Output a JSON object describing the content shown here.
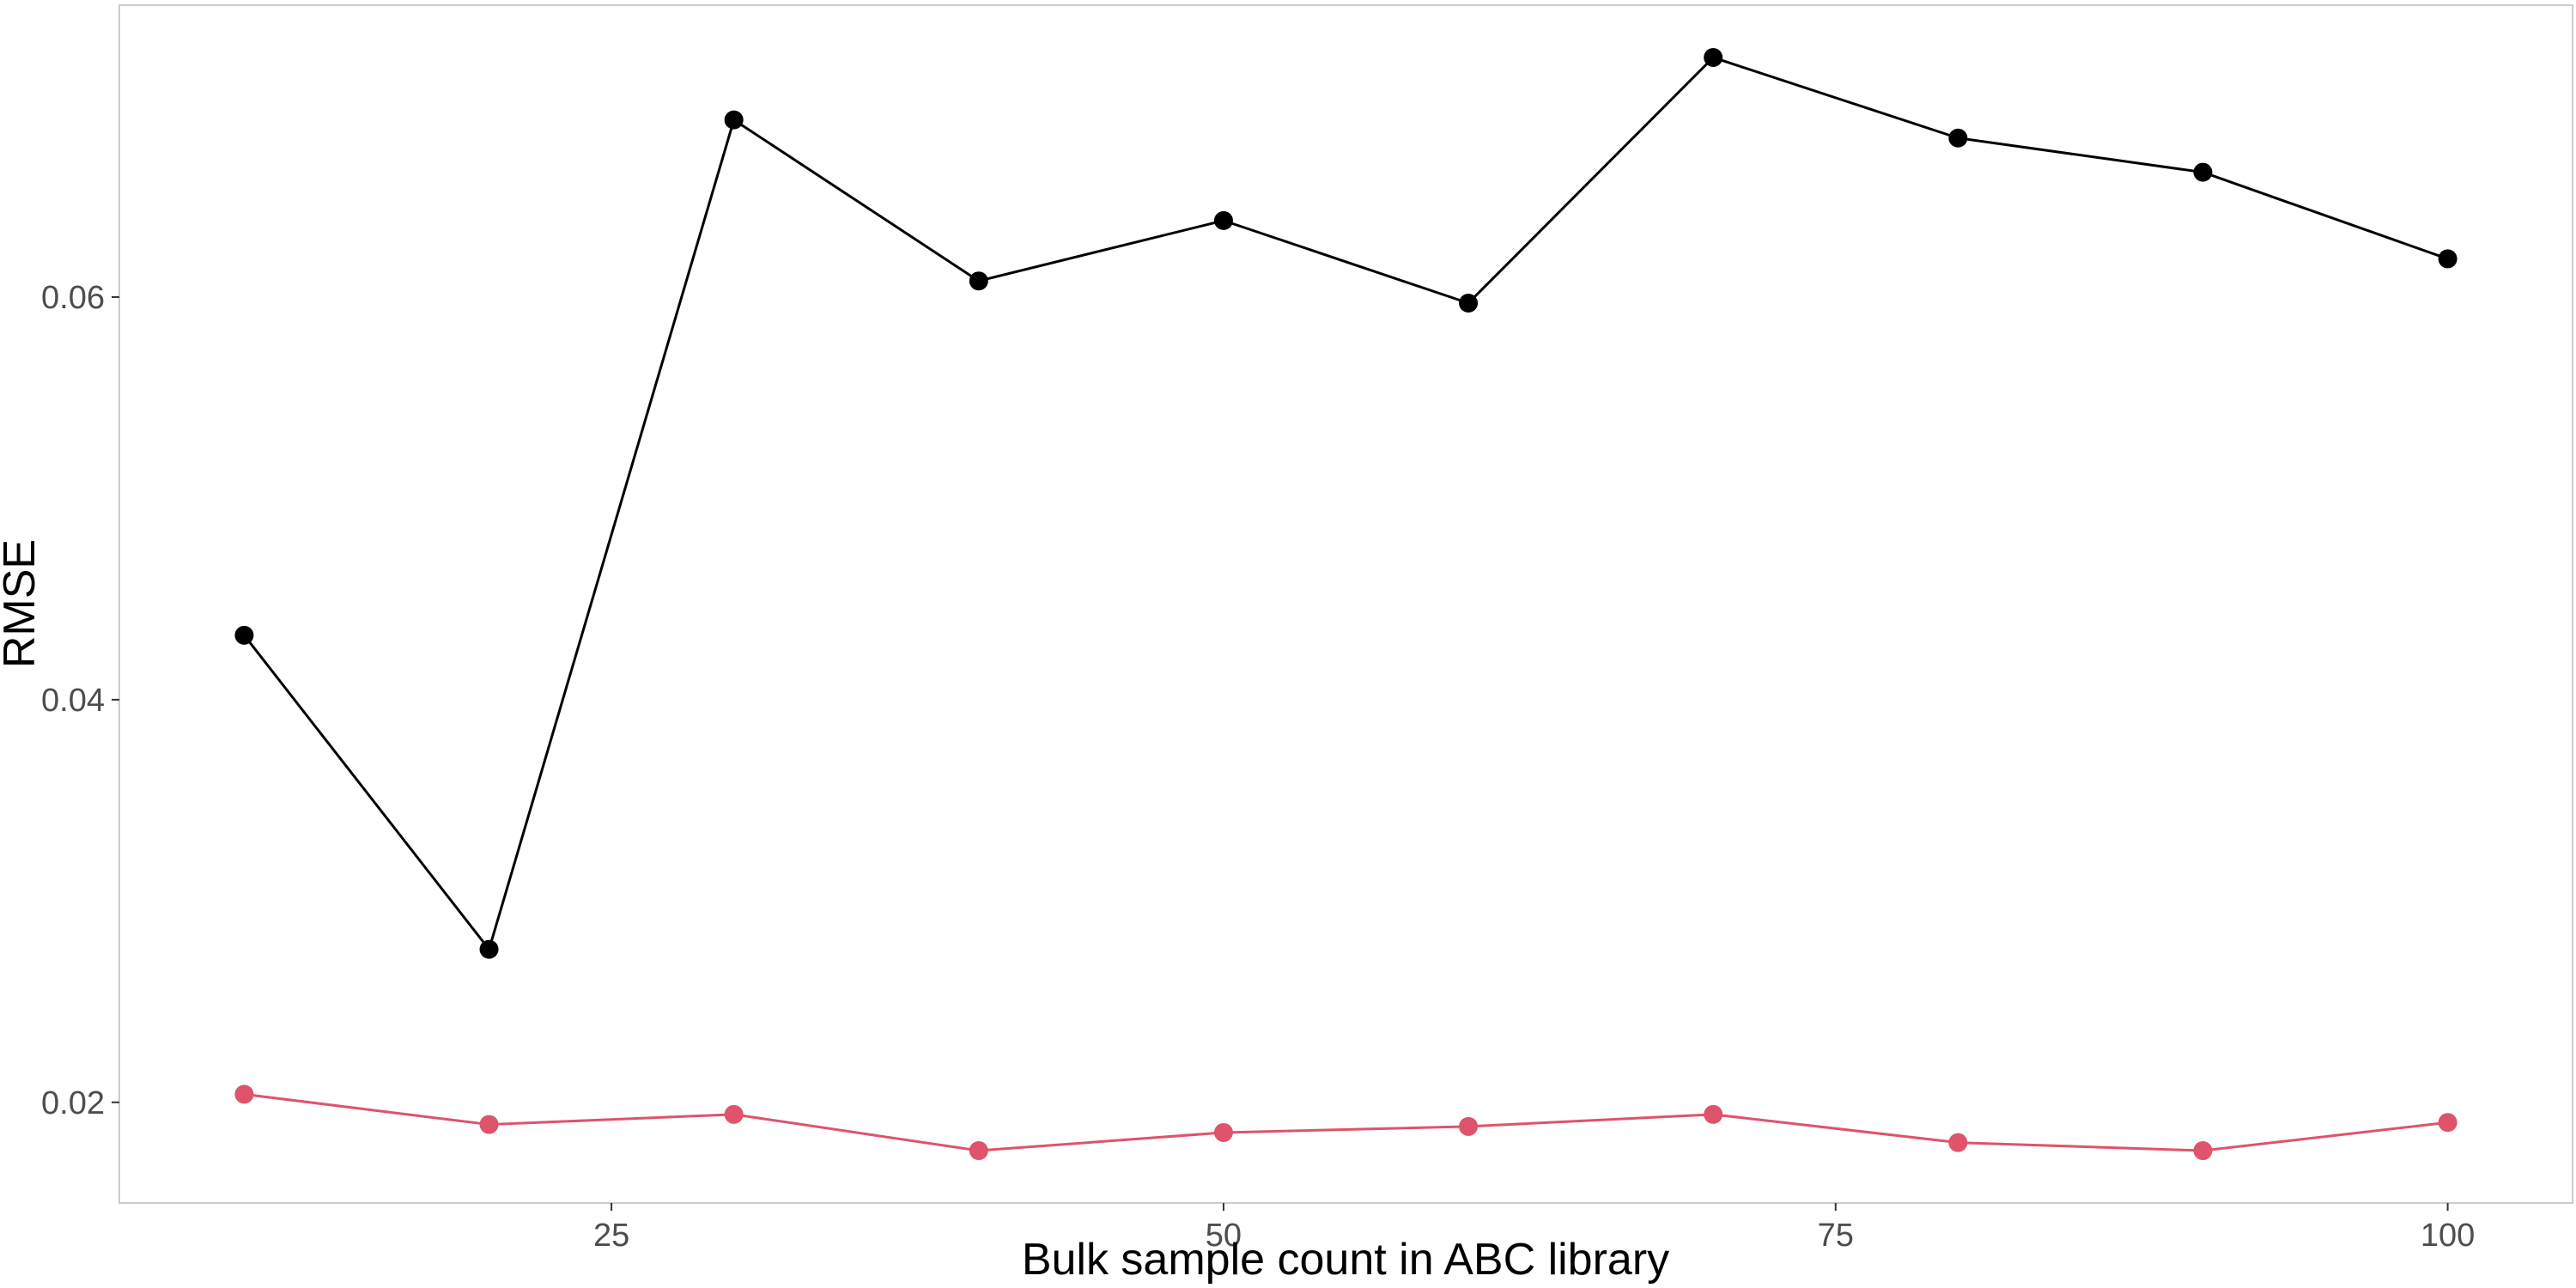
{
  "chart_data": {
    "type": "line",
    "title": "",
    "xlabel": "Bulk sample count in ABC library",
    "ylabel": "RMSE",
    "x": [
      10,
      20,
      30,
      40,
      50,
      60,
      70,
      80,
      90,
      100
    ],
    "xlim": [
      4.9,
      105.1
    ],
    "ylim": [
      0.015,
      0.0745
    ],
    "x_ticks": [
      25,
      50,
      75,
      100
    ],
    "x_tick_labels": [
      "25",
      "50",
      "75",
      "100"
    ],
    "y_ticks": [
      0.02,
      0.04,
      0.06
    ],
    "y_tick_labels": [
      "0.02",
      "0.04",
      "0.06"
    ],
    "grid": false,
    "legend": "none",
    "series": [
      {
        "color": "#000000",
        "values": [
          0.0432,
          0.0276,
          0.0688,
          0.0608,
          0.0638,
          0.0597,
          0.0719,
          0.0679,
          0.0662,
          0.0619
        ]
      },
      {
        "color": "#DF536B",
        "values": [
          0.0204,
          0.0189,
          0.0194,
          0.0176,
          0.0185,
          0.0188,
          0.0194,
          0.018,
          0.0176,
          0.019
        ]
      }
    ]
  }
}
